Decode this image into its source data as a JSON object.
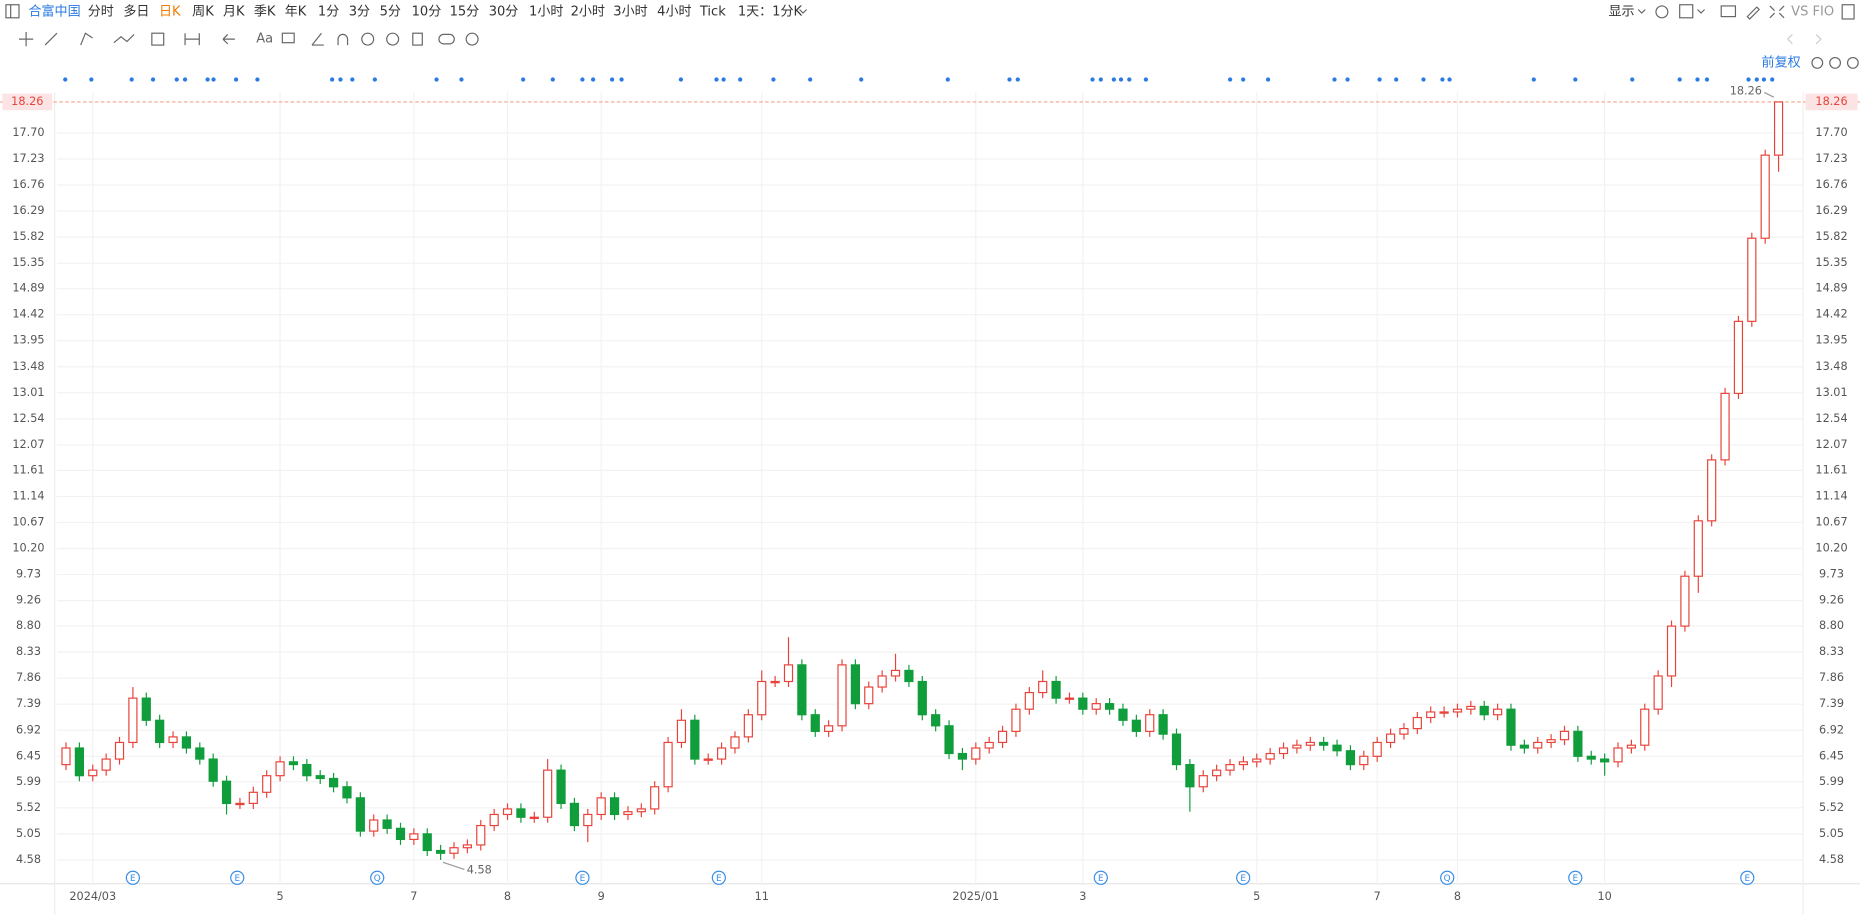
{
  "toolbar": {
    "stock": "合富中国",
    "periods": [
      "分时",
      "多日",
      "日K",
      "周K",
      "月K",
      "季K",
      "年K",
      "1分",
      "3分",
      "5分",
      "10分",
      "15分",
      "30分",
      "1小时",
      "2小时",
      "3小时",
      "4小时",
      "Tick",
      "1天：1分K"
    ],
    "display": "显示",
    "compare": "VS FIO",
    "tools_text": "Aa"
  },
  "adjust": "前复权",
  "events": [
    "E",
    "E",
    "Q",
    "E",
    "E",
    "E",
    "E",
    "Q",
    "E",
    "E"
  ],
  "chart_data": {
    "type": "candlestick",
    "up_color": "#e8433a",
    "down_color": "#109d3b",
    "grid": true,
    "ylim": [
      4.15,
      18.43
    ],
    "yticks": [
      4.58,
      5.05,
      5.52,
      5.99,
      6.45,
      6.92,
      7.39,
      7.86,
      8.33,
      {
        "value": 8.8,
        "label": "8.80"
      },
      9.26,
      9.73,
      {
        "value": 10.2,
        "label": "10.20"
      },
      10.67,
      11.14,
      11.61,
      12.07,
      12.54,
      13.01,
      13.48,
      13.95,
      14.42,
      14.89,
      15.35,
      15.82,
      16.29,
      16.76,
      17.23,
      {
        "value": 17.7,
        "label": "17.70"
      }
    ],
    "xlim": [
      -0.5,
      128.5
    ],
    "xticks": [
      {
        "value": 2,
        "label": "2024/03"
      },
      {
        "value": 16,
        "label": "5"
      },
      {
        "value": 26,
        "label": "7"
      },
      {
        "value": 33,
        "label": "8"
      },
      {
        "value": 40,
        "label": "9"
      },
      {
        "value": 52,
        "label": "11"
      },
      {
        "value": 68,
        "label": "2025/01"
      },
      {
        "value": 76,
        "label": "3"
      },
      {
        "value": 89,
        "label": "5"
      },
      {
        "value": 98,
        "label": "7"
      },
      {
        "value": 104,
        "label": "8"
      },
      {
        "value": 115,
        "label": "10"
      }
    ],
    "open": [
      6.3,
      6.6,
      6.1,
      6.2,
      6.4,
      6.7,
      7.5,
      7.1,
      6.7,
      6.8,
      6.6,
      6.4,
      6.0,
      5.6,
      5.6,
      5.8,
      6.1,
      6.35,
      6.3,
      6.1,
      6.05,
      5.9,
      5.7,
      5.1,
      5.3,
      5.15,
      4.95,
      5.05,
      4.75,
      4.7,
      4.8,
      4.85,
      5.2,
      5.4,
      5.5,
      5.35,
      5.35,
      6.2,
      5.6,
      5.2,
      5.4,
      5.7,
      5.4,
      5.45,
      5.5,
      5.9,
      6.7,
      7.1,
      6.4,
      6.4,
      6.6,
      6.8,
      7.2,
      7.8,
      7.8,
      8.1,
      7.2,
      6.9,
      7.0,
      8.1,
      7.4,
      7.7,
      7.9,
      8.0,
      7.8,
      7.2,
      7.0,
      6.5,
      6.4,
      6.6,
      6.7,
      6.9,
      7.3,
      7.6,
      7.8,
      7.5,
      7.5,
      7.3,
      7.4,
      7.3,
      7.1,
      6.9,
      7.2,
      6.85,
      6.3,
      5.9,
      6.1,
      6.2,
      6.3,
      6.35,
      6.4,
      6.5,
      6.6,
      6.65,
      6.7,
      6.65,
      6.55,
      6.3,
      6.45,
      6.7,
      6.85,
      6.95,
      7.15,
      7.25,
      7.25,
      7.3,
      7.35,
      7.2,
      7.3,
      6.65,
      6.6,
      6.7,
      6.75,
      6.9,
      6.45,
      6.4,
      6.35,
      6.6,
      6.65,
      7.3,
      7.9,
      8.8,
      9.7,
      10.7,
      11.8,
      13.0,
      14.3,
      15.8,
      17.3
    ],
    "high": [
      6.7,
      6.7,
      6.3,
      6.5,
      6.8,
      7.7,
      7.6,
      7.2,
      6.9,
      6.9,
      6.7,
      6.5,
      6.1,
      5.7,
      5.9,
      6.2,
      6.45,
      6.45,
      6.4,
      6.2,
      6.15,
      6.0,
      5.8,
      5.4,
      5.4,
      5.25,
      5.15,
      5.15,
      4.85,
      4.9,
      4.95,
      5.3,
      5.5,
      5.6,
      5.6,
      5.45,
      6.4,
      6.3,
      5.7,
      5.5,
      5.8,
      5.8,
      5.55,
      5.6,
      6.0,
      6.8,
      7.3,
      7.2,
      6.5,
      6.7,
      6.9,
      7.3,
      8.0,
      7.9,
      8.6,
      8.2,
      7.3,
      7.1,
      8.2,
      8.2,
      7.8,
      8.0,
      8.3,
      8.1,
      7.9,
      7.3,
      7.1,
      6.6,
      6.7,
      6.8,
      7.0,
      7.4,
      7.7,
      8.0,
      7.9,
      7.6,
      7.6,
      7.5,
      7.5,
      7.4,
      7.2,
      7.3,
      7.3,
      6.95,
      6.4,
      6.2,
      6.3,
      6.4,
      6.45,
      6.5,
      6.6,
      6.7,
      6.75,
      6.8,
      6.8,
      6.75,
      6.65,
      6.55,
      6.8,
      6.95,
      7.05,
      7.25,
      7.35,
      7.35,
      7.4,
      7.45,
      7.45,
      7.4,
      7.4,
      6.75,
      6.8,
      6.85,
      7.0,
      7.0,
      6.55,
      6.5,
      6.7,
      6.75,
      7.4,
      8.0,
      8.9,
      9.8,
      10.8,
      11.9,
      13.1,
      14.4,
      15.9,
      17.4,
      18.26
    ],
    "low": [
      6.2,
      6.0,
      6.0,
      6.1,
      6.3,
      6.6,
      7.0,
      6.6,
      6.6,
      6.5,
      6.3,
      5.9,
      5.4,
      5.5,
      5.5,
      5.7,
      6.0,
      6.2,
      6.0,
      5.95,
      5.8,
      5.6,
      5.0,
      5.0,
      5.05,
      4.85,
      4.85,
      4.65,
      4.58,
      4.6,
      4.7,
      4.75,
      5.1,
      5.3,
      5.25,
      5.25,
      5.25,
      5.5,
      5.1,
      4.9,
      5.3,
      5.3,
      5.3,
      5.35,
      5.4,
      5.8,
      6.6,
      6.3,
      6.3,
      6.3,
      6.5,
      6.7,
      7.1,
      7.7,
      7.7,
      7.1,
      6.8,
      6.8,
      6.9,
      7.3,
      7.3,
      7.6,
      7.8,
      7.7,
      7.1,
      6.9,
      6.4,
      6.2,
      6.3,
      6.5,
      6.6,
      6.8,
      7.2,
      7.5,
      7.4,
      7.4,
      7.2,
      7.2,
      7.2,
      7.0,
      6.8,
      6.8,
      6.75,
      6.2,
      5.45,
      5.8,
      6.0,
      6.1,
      6.2,
      6.25,
      6.3,
      6.4,
      6.5,
      6.55,
      6.55,
      6.45,
      6.2,
      6.2,
      6.35,
      6.6,
      6.75,
      6.85,
      7.05,
      7.15,
      7.15,
      7.2,
      7.1,
      7.1,
      6.55,
      6.5,
      6.5,
      6.6,
      6.65,
      6.35,
      6.3,
      6.1,
      6.25,
      6.5,
      6.55,
      7.2,
      7.7,
      8.7,
      9.4,
      10.6,
      11.7,
      12.9,
      14.2,
      15.7,
      17.0
    ],
    "close": [
      6.6,
      6.1,
      6.2,
      6.4,
      6.7,
      7.5,
      7.1,
      6.7,
      6.8,
      6.6,
      6.4,
      6.0,
      5.6,
      5.6,
      5.8,
      6.1,
      6.35,
      6.3,
      6.1,
      6.05,
      5.9,
      5.7,
      5.1,
      5.3,
      5.15,
      4.95,
      5.05,
      4.75,
      4.7,
      4.8,
      4.85,
      5.2,
      5.4,
      5.5,
      5.35,
      5.35,
      6.2,
      5.6,
      5.2,
      5.4,
      5.7,
      5.4,
      5.45,
      5.5,
      5.9,
      6.7,
      7.1,
      6.4,
      6.4,
      6.6,
      6.8,
      7.2,
      7.8,
      7.8,
      8.1,
      7.2,
      6.9,
      7.0,
      8.1,
      7.4,
      7.7,
      7.9,
      8.0,
      7.8,
      7.2,
      7.0,
      6.5,
      6.4,
      6.6,
      6.7,
      6.9,
      7.3,
      7.6,
      7.8,
      7.5,
      7.5,
      7.3,
      7.4,
      7.3,
      7.1,
      6.9,
      7.2,
      6.85,
      6.3,
      5.9,
      6.1,
      6.2,
      6.3,
      6.35,
      6.4,
      6.5,
      6.6,
      6.65,
      6.7,
      6.65,
      6.55,
      6.3,
      6.45,
      6.7,
      6.85,
      6.95,
      7.15,
      7.25,
      7.25,
      7.3,
      7.35,
      7.2,
      7.3,
      6.65,
      6.6,
      6.7,
      6.75,
      6.9,
      6.45,
      6.4,
      6.35,
      6.6,
      6.65,
      7.3,
      7.9,
      8.8,
      9.7,
      10.7,
      11.8,
      13.0,
      14.3,
      15.8,
      17.3,
      18.26
    ]
  }
}
